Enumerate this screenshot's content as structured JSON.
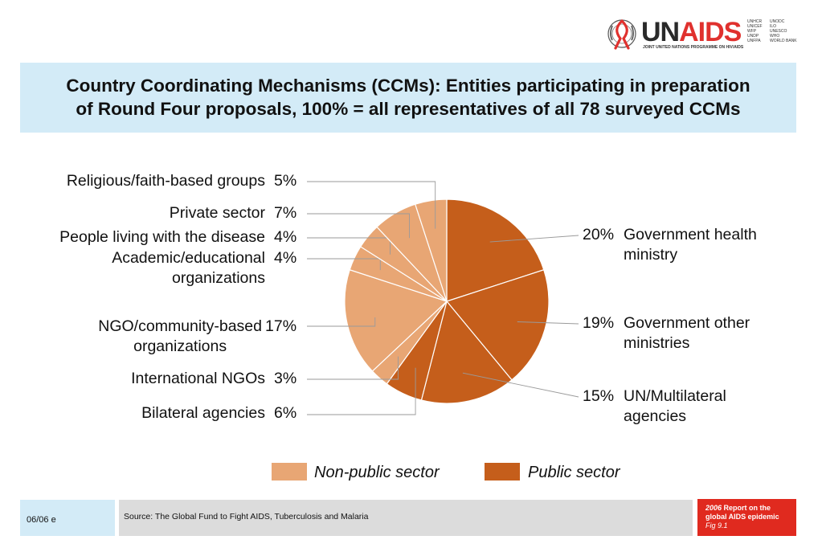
{
  "header": {
    "logo": {
      "brand_un": "UN",
      "brand_aids": "AIDS",
      "tagline": "JOINT UNITED NATIONS PROGRAMME ON HIV/AIDS",
      "cosponsors_col1": [
        "UNHCR",
        "UNICEF",
        "WFP",
        "UNDP",
        "UNFPA"
      ],
      "cosponsors_col2": [
        "UNODC",
        "ILO",
        "UNESCO",
        "WHO",
        "WORLD BANK"
      ]
    }
  },
  "colors": {
    "public": "#c55e1b",
    "non_public": "#e8a674",
    "title_bg": "#d3ebf7",
    "footer_red": "#e02a1f"
  },
  "chart_data": {
    "type": "pie",
    "title_line1": "Country Coordinating Mechanisms (CCMs): Entities participating in preparation",
    "title_line2": "of Round Four proposals, 100% = all representatives of all 78 surveyed CCMs",
    "start": "12 o'clock",
    "direction": "clockwise",
    "slices": [
      {
        "label": "Government health ministry",
        "value": 20,
        "value_label": "20%",
        "sector": "public",
        "label_lines": [
          "Government health",
          "ministry"
        ]
      },
      {
        "label": "Government other ministries",
        "value": 19,
        "value_label": "19%",
        "sector": "public",
        "label_lines": [
          "Government other",
          "ministries"
        ]
      },
      {
        "label": "UN/Multilateral agencies",
        "value": 15,
        "value_label": "15%",
        "sector": "public",
        "label_lines": [
          "UN/Multilateral",
          "agencies"
        ]
      },
      {
        "label": "Bilateral agencies",
        "value": 6,
        "value_label": "6%",
        "sector": "public",
        "label_lines": [
          "Bilateral agencies"
        ]
      },
      {
        "label": "International NGOs",
        "value": 3,
        "value_label": "3%",
        "sector": "non_public",
        "label_lines": [
          "International NGOs"
        ]
      },
      {
        "label": "NGO/community-based organizations",
        "value": 17,
        "value_label": "17%",
        "sector": "non_public",
        "label_lines": [
          "NGO/community-based",
          "organizations"
        ]
      },
      {
        "label": "Academic/educational organizations",
        "value": 4,
        "value_label": "4%",
        "sector": "non_public",
        "label_lines": [
          "Academic/educational",
          "organizations"
        ]
      },
      {
        "label": "People living with the disease",
        "value": 4,
        "value_label": "4%",
        "sector": "non_public",
        "label_lines": [
          "People living with the disease"
        ]
      },
      {
        "label": "Private sector",
        "value": 7,
        "value_label": "7%",
        "sector": "non_public",
        "label_lines": [
          "Private sector"
        ]
      },
      {
        "label": "Religious/faith-based groups",
        "value": 5,
        "value_label": "5%",
        "sector": "non_public",
        "label_lines": [
          "Religious/faith-based groups"
        ]
      }
    ],
    "legend": [
      {
        "label": "Non-public sector",
        "sector": "non_public"
      },
      {
        "label": "Public sector",
        "sector": "public"
      }
    ]
  },
  "footer": {
    "date": "06/06  e",
    "source": "Source:  The Global Fund to Fight AIDS, Tuberculosis and Malaria",
    "report_year": "2006",
    "report_line1_rest": " Report on the",
    "report_line2": "global AIDS epidemic",
    "report_fig": "Fig 9.1"
  }
}
